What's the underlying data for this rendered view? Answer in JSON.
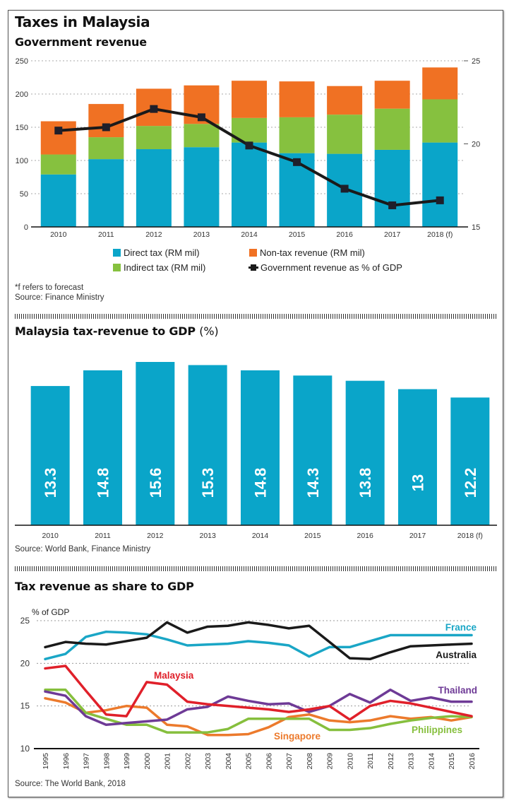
{
  "page": {
    "title": "Taxes in Malaysia"
  },
  "section1": {
    "title": "Government revenue",
    "note_forecast": "*f refers to forecast",
    "source": "Source: Finance Ministry",
    "legend": {
      "direct": "Direct tax (RM mil)",
      "nontax": "Non-tax revenue (RM mil)",
      "indirect": "Indirect tax (RM mil)",
      "gdp": "Government revenue as % of GDP"
    }
  },
  "section2": {
    "title": "Malaysia tax-revenue to GDP",
    "title_suffix": "(%)",
    "source": "Source: World Bank, Finance Ministry"
  },
  "section3": {
    "title": "Tax revenue as share to GDP",
    "source": "Source: The World Bank, 2018"
  },
  "colors": {
    "direct": "#0aa5c9",
    "indirect": "#86c13f",
    "nontax": "#f07123",
    "gdp_line": "#1a1a1a",
    "france": "#1aa6c6",
    "australia": "#1a1a1a",
    "malaysia": "#e0202a",
    "thailand": "#6e3a96",
    "singapore": "#ec7a2c",
    "philippines": "#86bf3d"
  },
  "chart_data": [
    {
      "type": "bar",
      "stacked": true,
      "title": "Government revenue",
      "categories": [
        "2010",
        "2011",
        "2012",
        "2013",
        "2014",
        "2015",
        "2016",
        "2017",
        "2018 (f)"
      ],
      "series": [
        {
          "name": "Direct tax (RM mil)",
          "key": "direct",
          "values": [
            79,
            102,
            117,
            120,
            127,
            111,
            110,
            116,
            127
          ]
        },
        {
          "name": "Indirect tax (RM mil)",
          "key": "indirect",
          "values": [
            30,
            33,
            35,
            35,
            37,
            54,
            59,
            62,
            65
          ]
        },
        {
          "name": "Non-tax revenue (RM mil)",
          "key": "nontax",
          "values": [
            50,
            50,
            56,
            58,
            56,
            54,
            43,
            42,
            48
          ]
        }
      ],
      "line_series": {
        "name": "Government revenue as % of GDP",
        "axis": "right",
        "values": [
          20.8,
          21.0,
          22.1,
          21.6,
          19.9,
          18.9,
          17.3,
          16.3,
          16.6
        ]
      },
      "y_left": {
        "ylim": [
          0,
          250
        ],
        "ticks": [
          0,
          50,
          100,
          150,
          200,
          250
        ]
      },
      "y_right": {
        "ylim": [
          15,
          25
        ],
        "ticks": [
          15,
          20,
          25
        ]
      },
      "grid": true,
      "legend_position": "bottom"
    },
    {
      "type": "bar",
      "title": "Malaysia tax-revenue to GDP (%)",
      "categories": [
        "2010",
        "2011",
        "2012",
        "2013",
        "2014",
        "2015",
        "2016",
        "2017",
        "2018 (f)"
      ],
      "values": [
        13.3,
        14.8,
        15.6,
        15.3,
        14.8,
        14.3,
        13.8,
        13,
        12.2
      ],
      "value_labels": [
        "13.3",
        "14.8",
        "15.6",
        "15.3",
        "14.8",
        "14.3",
        "13.8",
        "13",
        "12.2"
      ],
      "ylim": [
        0,
        16.5
      ],
      "grid": false
    },
    {
      "type": "line",
      "title": "Tax revenue as share to GDP",
      "ylabel": "% of GDP",
      "x": [
        "1995",
        "1996",
        "1997",
        "1998",
        "1999",
        "2000",
        "2001",
        "2002",
        "2003",
        "2004",
        "2005",
        "2006",
        "2007",
        "2008",
        "2009",
        "2010",
        "2011",
        "2012",
        "2013",
        "2014",
        "2015",
        "2016"
      ],
      "ylim": [
        10,
        25
      ],
      "yticks": [
        10,
        15,
        20,
        25
      ],
      "grid": true,
      "series": [
        {
          "name": "France",
          "key": "france",
          "values": [
            20.5,
            21.1,
            23.1,
            23.7,
            23.6,
            23.4,
            22.8,
            22.1,
            22.2,
            22.3,
            22.6,
            22.4,
            22.1,
            20.8,
            21.9,
            21.9,
            22.6,
            23.3,
            23.3,
            23.3,
            23.3,
            23.3
          ]
        },
        {
          "name": "Australia",
          "key": "australia",
          "values": [
            21.9,
            22.5,
            22.3,
            22.2,
            22.6,
            23.0,
            24.8,
            23.6,
            24.3,
            24.4,
            24.8,
            24.5,
            24.1,
            24.4,
            22.5,
            20.6,
            20.5,
            21.3,
            22.0,
            22.1,
            22.2,
            22.3
          ]
        },
        {
          "name": "Malaysia",
          "key": "malaysia",
          "values": [
            19.4,
            19.7,
            16.8,
            14.0,
            13.8,
            17.8,
            17.5,
            15.5,
            15.2,
            15.0,
            14.8,
            14.6,
            14.3,
            14.6,
            15.0,
            13.4,
            15.0,
            15.6,
            15.3,
            14.8,
            14.3,
            13.8
          ]
        },
        {
          "name": "Thailand",
          "key": "thailand",
          "values": [
            16.7,
            16.2,
            13.8,
            12.8,
            13.0,
            13.2,
            13.4,
            14.6,
            14.9,
            16.1,
            15.6,
            15.2,
            15.3,
            14.3,
            15.0,
            16.4,
            15.4,
            16.9,
            15.6,
            16.0,
            15.5,
            15.5
          ]
        },
        {
          "name": "Singapore",
          "key": "singapore",
          "values": [
            15.9,
            15.4,
            14.2,
            14.5,
            15.0,
            14.8,
            12.8,
            12.6,
            11.6,
            11.6,
            11.7,
            12.5,
            13.7,
            14.0,
            13.3,
            13.1,
            13.3,
            13.8,
            13.5,
            13.7,
            13.3,
            13.7
          ]
        },
        {
          "name": "Philippines",
          "key": "philippines",
          "values": [
            16.9,
            16.9,
            14.2,
            13.5,
            12.8,
            12.8,
            11.9,
            11.9,
            11.9,
            12.3,
            13.5,
            13.5,
            13.5,
            13.5,
            12.2,
            12.2,
            12.4,
            12.9,
            13.3,
            13.6,
            13.8,
            13.7
          ]
        }
      ],
      "annotations": [
        "France",
        "Australia",
        "Malaysia",
        "Thailand",
        "Singapore",
        "Philippines"
      ],
      "legend_position": "inline labels"
    }
  ]
}
